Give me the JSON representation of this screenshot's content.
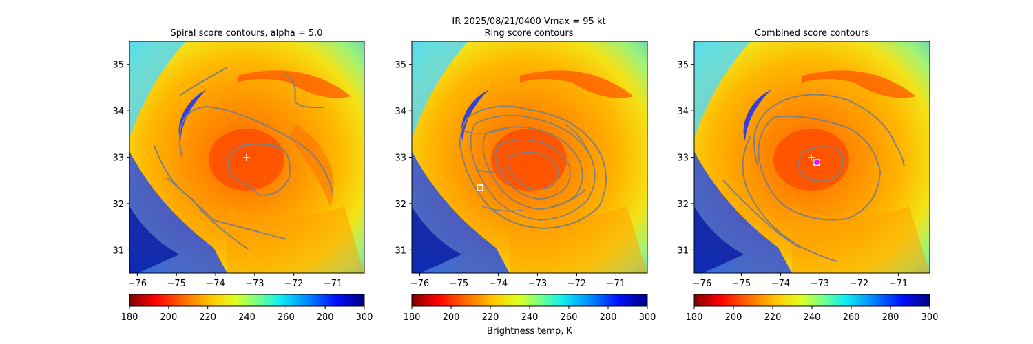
{
  "suptitle": "IR  2025/08/21/0400    Vmax = 95 kt",
  "chart_data": [
    {
      "type": "heatmap",
      "title": "Spiral score contours, alpha =  5.0",
      "field": "IR brightness temperature (K)",
      "xlim": [
        -76.2,
        -70.2
      ],
      "ylim": [
        30.5,
        35.5
      ],
      "xticks": [
        -76,
        -75,
        -74,
        -73,
        -72,
        -71
      ],
      "xtick_labels": [
        "−76",
        "−75",
        "−74",
        "−73",
        "−72",
        "−71"
      ],
      "yticks": [
        31,
        32,
        33,
        34,
        35
      ],
      "ytick_labels": [
        "31",
        "32",
        "33",
        "34",
        "35"
      ],
      "center_marker": {
        "symbol": "+",
        "color": "#ffffff",
        "lon": -73.0,
        "lat": 32.97
      },
      "colorbar": {
        "ticks": [
          180,
          200,
          220,
          240,
          260,
          280,
          300
        ],
        "tick_labels": [
          "180",
          "200",
          "220",
          "240",
          "260",
          "280",
          "300"
        ],
        "range": [
          180,
          300
        ],
        "cmap": "jet_r",
        "label": ""
      }
    },
    {
      "type": "heatmap",
      "title": "Ring score contours",
      "field": "IR brightness temperature (K)",
      "xlim": [
        -76.2,
        -70.2
      ],
      "ylim": [
        30.5,
        35.5
      ],
      "xticks": [
        -76,
        -75,
        -74,
        -73,
        -72,
        -71
      ],
      "xtick_labels": [
        "−76",
        "−75",
        "−74",
        "−73",
        "−72",
        "−71"
      ],
      "yticks": [
        31,
        32,
        33,
        34,
        35
      ],
      "ytick_labels": [
        "31",
        "32",
        "33",
        "34",
        "35"
      ],
      "square_marker": {
        "symbol": "square",
        "color": "#ffffff",
        "lon": -74.3,
        "lat": 32.32
      },
      "colorbar": {
        "ticks": [
          180,
          200,
          220,
          240,
          260,
          280,
          300
        ],
        "tick_labels": [
          "180",
          "200",
          "220",
          "240",
          "260",
          "280",
          "300"
        ],
        "range": [
          180,
          300
        ],
        "cmap": "jet_r",
        "label": "Brightness temp, K"
      }
    },
    {
      "type": "heatmap",
      "title": "Combined score contours",
      "field": "IR brightness temperature (K)",
      "xlim": [
        -76.2,
        -70.2
      ],
      "ylim": [
        30.5,
        35.5
      ],
      "xticks": [
        -76,
        -75,
        -74,
        -73,
        -72,
        -71
      ],
      "xtick_labels": [
        "−76",
        "−75",
        "−74",
        "−73",
        "−72",
        "−71"
      ],
      "yticks": [
        31,
        32,
        33,
        34,
        35
      ],
      "ytick_labels": [
        "31",
        "32",
        "33",
        "34",
        "35"
      ],
      "center_marker": {
        "symbol": "+",
        "color": "#ffffff",
        "lon": -73.05,
        "lat": 32.97
      },
      "square_marker": {
        "symbol": "square",
        "color": "#ffffff",
        "lon": -72.9,
        "lat": 32.88
      },
      "combined_marker": {
        "symbol": "circle",
        "color": "#ff00ff",
        "lon": -72.9,
        "lat": 32.88
      },
      "colorbar": {
        "ticks": [
          180,
          200,
          220,
          240,
          260,
          280,
          300
        ],
        "tick_labels": [
          "180",
          "200",
          "220",
          "240",
          "260",
          "280",
          "300"
        ],
        "range": [
          180,
          300
        ],
        "cmap": "jet_r",
        "label": ""
      }
    }
  ],
  "colors": {
    "contour": "#808080",
    "frame": "#000000"
  }
}
